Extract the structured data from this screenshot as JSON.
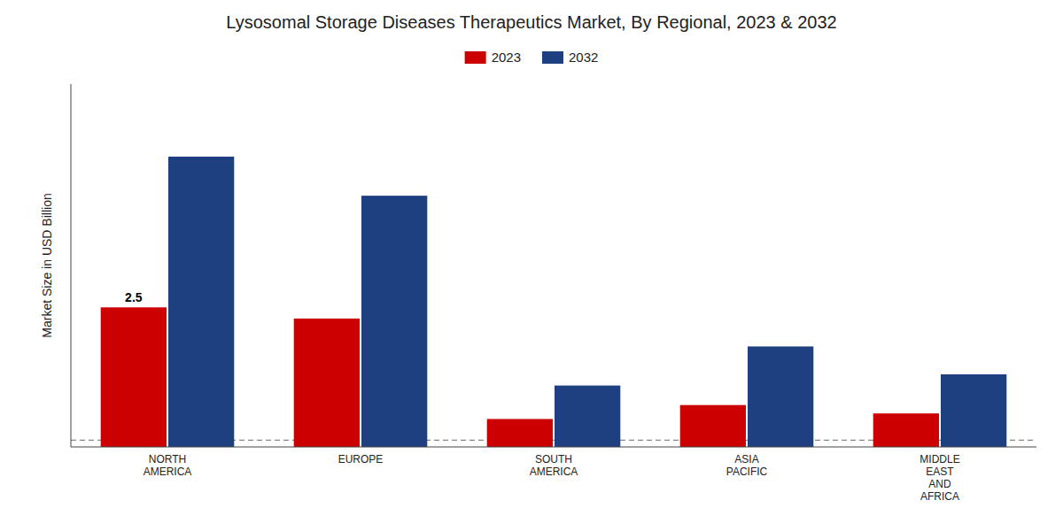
{
  "chart_data": {
    "type": "bar",
    "title": "Lysosomal Storage Diseases Therapeutics Market, By Regional, 2023 & 2032",
    "ylabel": "Market Size in USD Billion",
    "categories": [
      "NORTH\nAMERICA",
      "EUROPE",
      "SOUTH\nAMERICA",
      "ASIA\nPACIFIC",
      "MIDDLE\nEAST\nAND\nAFRICA"
    ],
    "series": [
      {
        "name": "2023",
        "color": "#cc0000",
        "values": [
          2.5,
          2.3,
          0.5,
          0.75,
          0.6
        ]
      },
      {
        "name": "2032",
        "color": "#1e4080",
        "values": [
          5.2,
          4.5,
          1.1,
          1.8,
          1.3
        ]
      }
    ],
    "ylim": [
      0,
      6.5
    ],
    "tick_labels": "x",
    "grid": false,
    "legend": "top",
    "annotation": "2.5",
    "hline": 0.12
  }
}
